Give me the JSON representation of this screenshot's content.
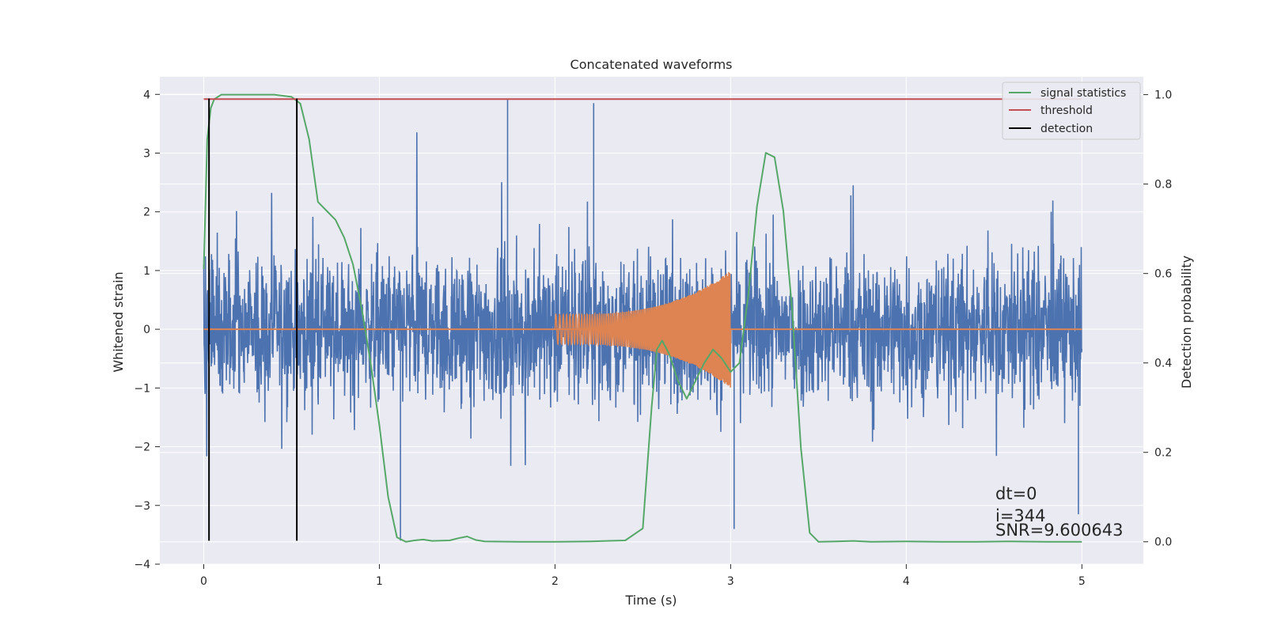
{
  "chart_data": {
    "type": "line",
    "title": "Concatenated waveforms",
    "xlabel": "Time (s)",
    "ylabel": "Whitened strain",
    "y2label": "Detection probability",
    "xlim": [
      -0.25,
      5.35
    ],
    "ylim": [
      -4,
      4.3
    ],
    "y2lim": [
      -0.05,
      1.04
    ],
    "xticks": [
      0,
      1,
      2,
      3,
      4,
      5
    ],
    "xtick_labels": [
      "0",
      "1",
      "2",
      "3",
      "4",
      "5"
    ],
    "yticks": [
      -4,
      -3,
      -2,
      -1,
      0,
      1,
      2,
      3,
      4
    ],
    "ytick_labels": [
      "−4",
      "−3",
      "−2",
      "−1",
      "0",
      "1",
      "2",
      "3",
      "4"
    ],
    "y2ticks": [
      0.0,
      0.2,
      0.4,
      0.6,
      0.8,
      1.0
    ],
    "y2tick_labels": [
      "0.0",
      "0.2",
      "0.4",
      "0.6",
      "0.8",
      "1.0"
    ],
    "grid": true,
    "legend_position": "top-right",
    "colors": {
      "background": "#eaeaf2",
      "grid": "#ffffff",
      "strain": "#4c72b0",
      "injection": "#dd8452",
      "signal_statistics": "#55a868",
      "threshold": "#c44e52",
      "detection": "#000000"
    },
    "series": [
      {
        "name": "signal statistics",
        "axis": "right",
        "x": [
          0.0,
          0.02,
          0.04,
          0.06,
          0.1,
          0.2,
          0.3,
          0.4,
          0.5,
          0.55,
          0.6,
          0.65,
          0.7,
          0.75,
          0.8,
          0.85,
          0.9,
          0.95,
          1.0,
          1.05,
          1.1,
          1.15,
          1.2,
          1.25,
          1.3,
          1.4,
          1.45,
          1.5,
          1.55,
          1.6,
          1.8,
          2.0,
          2.2,
          2.4,
          2.5,
          2.55,
          2.58,
          2.61,
          2.65,
          2.7,
          2.75,
          2.8,
          2.85,
          2.9,
          2.95,
          3.0,
          3.05,
          3.1,
          3.15,
          3.2,
          3.25,
          3.3,
          3.35,
          3.4,
          3.45,
          3.5,
          3.6,
          3.7,
          3.8,
          4.0,
          4.2,
          4.4,
          4.6,
          4.8,
          5.0
        ],
        "values": [
          0.61,
          0.9,
          0.97,
          0.99,
          1.0,
          1.0,
          1.0,
          1.0,
          0.995,
          0.98,
          0.9,
          0.76,
          0.74,
          0.72,
          0.68,
          0.62,
          0.52,
          0.4,
          0.26,
          0.1,
          0.01,
          0.0,
          0.003,
          0.005,
          0.002,
          0.003,
          0.008,
          0.012,
          0.004,
          0.001,
          0.0,
          0.0,
          0.001,
          0.003,
          0.03,
          0.3,
          0.43,
          0.45,
          0.42,
          0.36,
          0.32,
          0.36,
          0.4,
          0.43,
          0.41,
          0.38,
          0.4,
          0.55,
          0.75,
          0.87,
          0.86,
          0.74,
          0.52,
          0.21,
          0.02,
          0.0,
          0.001,
          0.002,
          0.0,
          0.001,
          0.0,
          0.0,
          0.001,
          0.0,
          0.0
        ]
      },
      {
        "name": "threshold",
        "axis": "right",
        "x": [
          0.0,
          5.0
        ],
        "values": [
          0.99,
          0.99
        ]
      },
      {
        "name": "detection",
        "axis": "left",
        "x": [
          0.03,
          0.53
        ],
        "values": [
          -3.6,
          3.93
        ]
      },
      {
        "name": "",
        "axis": "left",
        "description": "whitened noisy strain",
        "x_range": [
          0,
          5
        ],
        "amplitude_typical": 1.0,
        "spike_range": [
          -3.6,
          3.92
        ]
      },
      {
        "name": "",
        "axis": "left",
        "description": "injected chirp waveform",
        "x_range": [
          2.0,
          3.0
        ],
        "start_amplitude": 0.25,
        "end_amplitude": 1.0
      }
    ],
    "annotations": [
      "dt=0",
      "i=344",
      "SNR=9.600643"
    ]
  }
}
